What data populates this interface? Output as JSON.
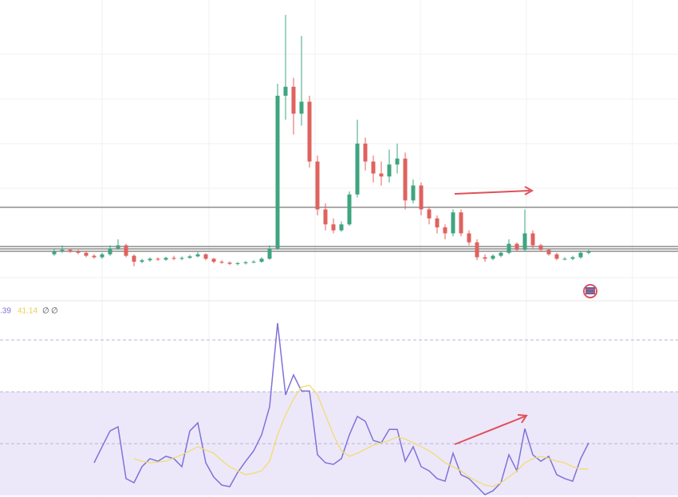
{
  "chart_data": [
    {
      "type": "candlestick",
      "ylim": [
        0,
        100
      ],
      "up_color": "#3ea57f",
      "down_color": "#e0625e",
      "levels": [
        30.7,
        17.6,
        16.8,
        16
      ],
      "open": [
        15,
        16,
        16.5,
        16,
        15.5,
        14.5,
        14,
        15,
        17,
        18,
        14.5,
        12.5,
        13,
        13.5,
        13.2,
        13.8,
        13.5,
        13.8,
        14.3,
        15,
        13.5,
        12.5,
        12.2,
        11.8,
        12,
        12.3,
        12.5,
        13.5,
        17,
        68,
        71,
        62,
        66,
        46,
        30,
        25,
        23,
        25,
        35,
        52,
        46,
        42,
        41,
        45,
        47,
        33,
        38,
        30,
        27,
        24,
        22,
        29,
        22,
        19,
        14,
        13.5,
        14.5,
        15.5,
        18.5,
        16.5,
        22,
        18,
        16.5,
        15,
        13.5,
        13.5,
        14,
        15.5
      ],
      "high": [
        17,
        18,
        17,
        16.5,
        16,
        15,
        15.5,
        18,
        20,
        18.5,
        15,
        13.5,
        14,
        14,
        14.2,
        14.5,
        14.3,
        14.8,
        15.8,
        15.3,
        13.8,
        13,
        12.6,
        12.5,
        12.8,
        13,
        14,
        18,
        72,
        95,
        74,
        88,
        68,
        48,
        32,
        27,
        26,
        36,
        60,
        54,
        48,
        46,
        50,
        52,
        49,
        40,
        39,
        31,
        28,
        25,
        30,
        30,
        23,
        20,
        15,
        15,
        16,
        20,
        19,
        30,
        23,
        18.5,
        17,
        15.5,
        14,
        14.5,
        16,
        16.5
      ],
      "low": [
        14.5,
        15.5,
        15.5,
        15,
        14,
        13.5,
        13.5,
        14.5,
        16.5,
        14,
        11,
        12,
        12.5,
        12.8,
        12.8,
        13,
        13,
        13.5,
        14,
        13,
        12,
        11.8,
        11.4,
        11.3,
        11.6,
        12,
        12.2,
        13.2,
        16.5,
        60,
        55,
        58,
        44,
        28,
        23,
        22,
        22.5,
        24.5,
        34,
        43,
        39,
        38,
        39,
        42,
        30,
        32,
        28,
        25,
        22,
        20,
        21,
        21,
        18,
        13,
        12.5,
        13,
        14,
        15,
        16,
        16,
        17,
        16,
        14.5,
        13,
        13,
        13,
        13.5,
        15
      ],
      "close": [
        16,
        16.5,
        16,
        15.5,
        14.5,
        14,
        15,
        17,
        18,
        14.5,
        12.5,
        13,
        13.5,
        13.2,
        13.8,
        13.5,
        13.8,
        14.3,
        15,
        13.5,
        12.5,
        12.2,
        11.8,
        12,
        12.3,
        12.5,
        13.5,
        17,
        68,
        71,
        62,
        66,
        46,
        30,
        25,
        23,
        25,
        35,
        52,
        46,
        42,
        41,
        45,
        47,
        33,
        38,
        30,
        27,
        24,
        22,
        29,
        22,
        19,
        14,
        13.5,
        14.5,
        15.5,
        18.5,
        16.5,
        22,
        18,
        16.5,
        15,
        13.5,
        13.5,
        14,
        15.5,
        16
      ]
    },
    {
      "type": "line",
      "ylim": [
        29.4,
        104.2
      ],
      "levels": [
        90,
        70,
        50
      ],
      "band": [
        30,
        70
      ],
      "band_color": "#ece8fa",
      "extras": [
        "∅",
        "∅"
      ],
      "series": [
        {
          "label": ".39",
          "color": "#7f72d8",
          "values": [
            null,
            null,
            null,
            null,
            null,
            42.6,
            48.8,
            54.9,
            56.5,
            36.5,
            34.9,
            41.1,
            44.2,
            43.2,
            45.1,
            44.2,
            41.1,
            54.9,
            58,
            42.6,
            37.1,
            34,
            33.4,
            38.9,
            43.2,
            47.2,
            53.4,
            64.2,
            96.5,
            68.8,
            76.5,
            70.3,
            70.3,
            45.7,
            42.6,
            42,
            44.2,
            53.4,
            60.5,
            58.6,
            51.2,
            50.3,
            55.5,
            55.5,
            43.2,
            48.8,
            41.1,
            39.5,
            36.5,
            35.5,
            46.3,
            38,
            36.5,
            33.4,
            30.3,
            31.8,
            34.9,
            45.7,
            39.5,
            55.8,
            45.7,
            43.2,
            45.1,
            38,
            36.5,
            35.5,
            44.2,
            50.3
          ]
        },
        {
          "label": "41.14",
          "color": "#f2dc6e",
          "values": [
            null,
            null,
            null,
            null,
            null,
            null,
            null,
            null,
            null,
            null,
            44.2,
            43.2,
            42.6,
            42.9,
            43.2,
            44.5,
            45.7,
            47.2,
            48.8,
            47.5,
            46.3,
            43.5,
            41.1,
            39.5,
            38,
            38.6,
            39.5,
            43.2,
            53.4,
            61.1,
            67.2,
            71.8,
            72.5,
            68.8,
            61.1,
            53.4,
            47.2,
            45.1,
            46.3,
            47.8,
            49.4,
            50.3,
            51.2,
            52.5,
            51.8,
            50.3,
            48.8,
            47.2,
            45.1,
            42.6,
            41.1,
            39.5,
            37.1,
            35.5,
            34,
            33.4,
            34.9,
            37.1,
            39.5,
            42.6,
            44.2,
            45.1,
            44.2,
            43.2,
            42.6,
            41.1,
            40.2,
            40.2
          ]
        }
      ]
    }
  ]
}
